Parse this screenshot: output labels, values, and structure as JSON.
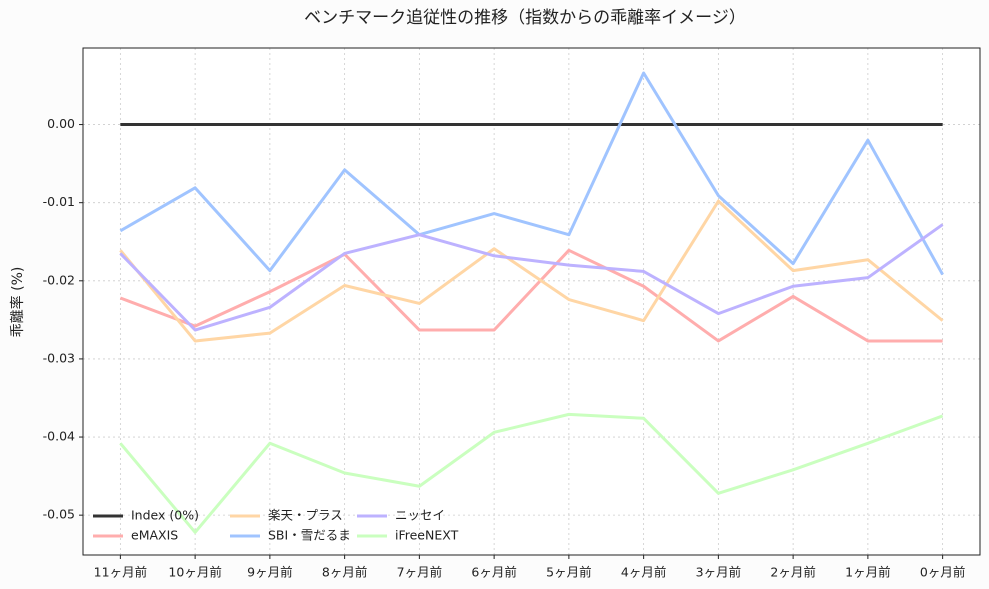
{
  "chart_data": {
    "type": "line",
    "title": "ベンチマーク追従性の推移（指数からの乖離率イメージ）",
    "y_label": "乖離率 (%)",
    "categories": [
      "11ヶ月前",
      "10ヶ月前",
      "9ヶ月前",
      "8ヶ月前",
      "7ヶ月前",
      "6ヶ月前",
      "5ヶ月前",
      "4ヶ月前",
      "3ヶ月前",
      "2ヶ月前",
      "1ヶ月前",
      "0ヶ月前"
    ],
    "series": [
      {
        "name": "Index (0%)",
        "color": "#333333",
        "values": [
          0,
          0,
          0,
          0,
          0,
          0,
          0,
          0,
          0,
          0,
          0,
          0
        ]
      },
      {
        "name": "eMAXIS",
        "color": "#ffadad",
        "values": [
          -0.0222,
          -0.0258,
          -0.0214,
          -0.0166,
          -0.0263,
          -0.0263,
          -0.0161,
          -0.0207,
          -0.0277,
          -0.022,
          -0.0277,
          -0.0277
        ]
      },
      {
        "name": "楽天・プラス",
        "color": "#ffd6a5",
        "values": [
          -0.0161,
          -0.0277,
          -0.0267,
          -0.0206,
          -0.0229,
          -0.0159,
          -0.0224,
          -0.0251,
          -0.0098,
          -0.0187,
          -0.0173,
          -0.0251
        ]
      },
      {
        "name": "SBI・雪だるま",
        "color": "#a0c4ff",
        "values": [
          -0.0136,
          -0.0081,
          -0.0187,
          -0.0058,
          -0.0141,
          -0.0114,
          -0.0141,
          0.0066,
          -0.0091,
          -0.0178,
          -0.002,
          -0.0192
        ]
      },
      {
        "name": "ニッセイ",
        "color": "#bdb2ff",
        "values": [
          -0.0165,
          -0.0263,
          -0.0234,
          -0.0165,
          -0.0141,
          -0.0168,
          -0.018,
          -0.0188,
          -0.0242,
          -0.0207,
          -0.0196,
          -0.0128
        ]
      },
      {
        "name": "iFreeNEXT",
        "color": "#caffbf",
        "values": [
          -0.0408,
          -0.0522,
          -0.0408,
          -0.0446,
          -0.0463,
          -0.0394,
          -0.0371,
          -0.0376,
          -0.0472,
          -0.0442,
          -0.0408,
          -0.0373
        ]
      }
    ],
    "ylim": [
      -0.0551,
      0.0098
    ],
    "yticks": [
      {
        "value": 0,
        "label": "0.00"
      },
      {
        "value": -0.01,
        "label": "-0.01"
      },
      {
        "value": -0.02,
        "label": "-0.02"
      },
      {
        "value": -0.03,
        "label": "-0.03"
      },
      {
        "value": -0.04,
        "label": "-0.04"
      },
      {
        "value": -0.05,
        "label": "-0.05"
      }
    ],
    "grid": true,
    "legend": "lower left"
  }
}
